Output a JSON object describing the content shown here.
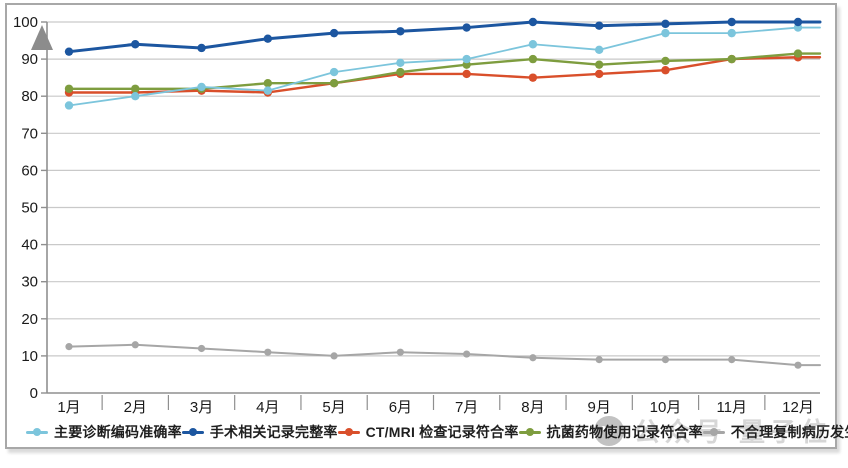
{
  "watermark": {
    "icon": "smiley-face-icon",
    "text": "公众号 量子位"
  },
  "chart_data": {
    "type": "line",
    "title": "",
    "xlabel": "",
    "ylabel": "",
    "categories": [
      "1月",
      "2月",
      "3月",
      "4月",
      "5月",
      "6月",
      "7月",
      "8月",
      "9月",
      "10月",
      "11月",
      "12月"
    ],
    "ylim": [
      0,
      100
    ],
    "y_ticks": [
      0,
      10,
      20,
      30,
      40,
      50,
      60,
      70,
      80,
      90,
      100
    ],
    "grid": true,
    "legend_position": "bottom",
    "axis_arrow": "up",
    "series": [
      {
        "key": "primary-diagnosis-coding-accuracy",
        "name": "主要诊断编码准确率",
        "color": "#7cc5dc",
        "values": [
          77.5,
          80,
          82.5,
          81.5,
          86.5,
          89,
          90,
          94,
          92.5,
          97,
          97,
          98.5
        ]
      },
      {
        "key": "surgery-record-completeness",
        "name": "手术相关记录完整率",
        "color": "#1c56a0",
        "values": [
          92,
          94,
          93,
          95.5,
          97,
          97.5,
          98.5,
          100,
          99,
          99.5,
          100,
          100
        ]
      },
      {
        "key": "ct-mri-record-conformity",
        "name": "CT/MRI 检查记录符合率",
        "color": "#d94f2b",
        "values": [
          81,
          81,
          81.5,
          81,
          83.5,
          86,
          86,
          85,
          86,
          87,
          90,
          90.5
        ]
      },
      {
        "key": "antibiotic-usage-record-conformity",
        "name": "抗菌药物使用记录符合率",
        "color": "#7e9d3f",
        "values": [
          82,
          82,
          82,
          83.5,
          83.5,
          86.5,
          88.5,
          90,
          88.5,
          89.5,
          90,
          91.5
        ]
      },
      {
        "key": "unreasonable-copied-record-rate",
        "name": "不合理复制病历发生率",
        "color": "#a6a6a6",
        "values": [
          12.5,
          13,
          12,
          11,
          10,
          11,
          10.5,
          9.5,
          9,
          9,
          9,
          7.5
        ]
      }
    ],
    "colors": {
      "grid": "#c9c9c9",
      "axis": "#8f8f8f",
      "tick_label": "#1a1a1a",
      "arrow": "#8c8c8c"
    }
  }
}
